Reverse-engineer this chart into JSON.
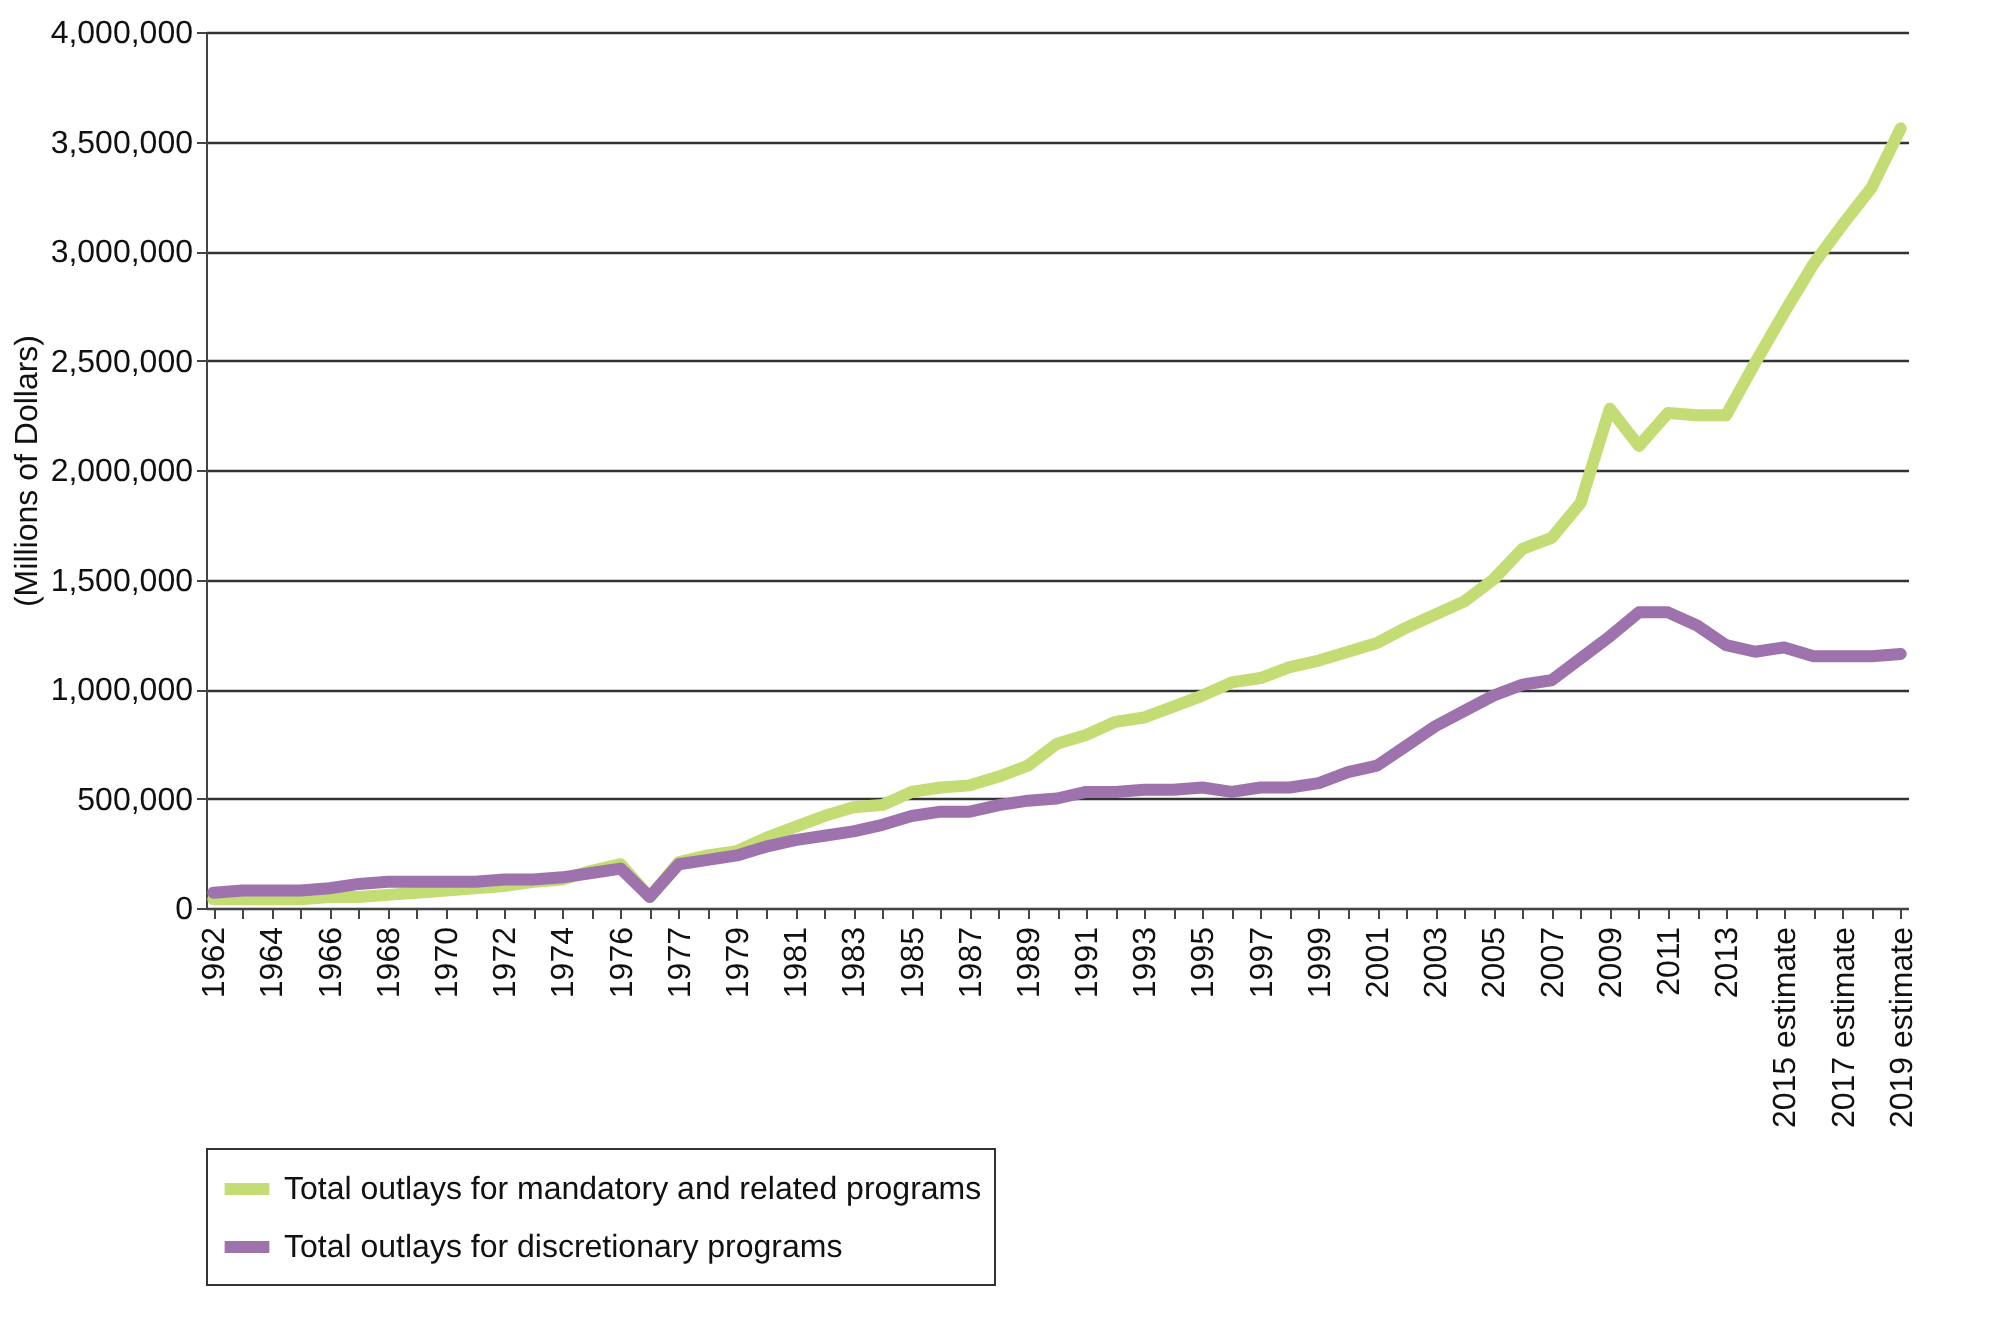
{
  "chart_data": {
    "type": "line",
    "ylabel": "(Millions of Dollars)",
    "categories": [
      "1962",
      null,
      "1964",
      null,
      "1966",
      null,
      "1968",
      null,
      "1970",
      null,
      "1972",
      null,
      "1974",
      null,
      "1976",
      null,
      "1977",
      null,
      "1979",
      null,
      "1981",
      null,
      "1983",
      null,
      "1985",
      null,
      "1987",
      null,
      "1989",
      null,
      "1991",
      null,
      "1993",
      null,
      "1995",
      null,
      "1997",
      null,
      "1999",
      null,
      "2001",
      null,
      "2003",
      null,
      "2005",
      null,
      "2007",
      null,
      "2009",
      null,
      "2011",
      null,
      "2013",
      null,
      "2015 estimate",
      null,
      "2017 estimate",
      null,
      "2019 estimate"
    ],
    "series": [
      {
        "name": "Total outlays for mandatory and related programs",
        "color": "#c3dc73",
        "values": [
          40000,
          40000,
          40000,
          40000,
          50000,
          50000,
          60000,
          70000,
          80000,
          90000,
          100000,
          120000,
          130000,
          170000,
          200000,
          50000,
          210000,
          240000,
          260000,
          320000,
          370000,
          420000,
          460000,
          470000,
          530000,
          550000,
          560000,
          600000,
          650000,
          750000,
          790000,
          850000,
          870000,
          920000,
          970000,
          1030000,
          1050000,
          1100000,
          1130000,
          1170000,
          1210000,
          1280000,
          1340000,
          1400000,
          1500000,
          1640000,
          1690000,
          1850000,
          2280000,
          2110000,
          2260000,
          2250000,
          2250000,
          2490000,
          2720000,
          2940000,
          3120000,
          3290000,
          3560000
        ]
      },
      {
        "name": "Total outlays for discretionary programs",
        "color": "#9e72ad",
        "values": [
          70000,
          80000,
          80000,
          80000,
          90000,
          110000,
          120000,
          120000,
          120000,
          120000,
          130000,
          130000,
          140000,
          160000,
          180000,
          50000,
          200000,
          220000,
          240000,
          280000,
          310000,
          330000,
          350000,
          380000,
          420000,
          440000,
          440000,
          470000,
          490000,
          500000,
          530000,
          530000,
          540000,
          540000,
          550000,
          530000,
          550000,
          550000,
          570000,
          620000,
          650000,
          740000,
          830000,
          900000,
          970000,
          1020000,
          1040000,
          1140000,
          1240000,
          1350000,
          1350000,
          1290000,
          1200000,
          1170000,
          1190000,
          1150000,
          1150000,
          1150000,
          1160000
        ]
      }
    ],
    "ylim": [
      0,
      4000000
    ],
    "yticks": [
      0,
      {
        "value": 500000,
        "label": "500,000"
      },
      {
        "value": 1000000,
        "label": "1,000,000"
      },
      {
        "value": 1500000,
        "label": "1,500,000"
      },
      {
        "value": 2000000,
        "label": "2,000,000"
      },
      {
        "value": 2500000,
        "label": "2,500,000"
      },
      {
        "value": 3000000,
        "label": "3,000,000"
      },
      {
        "value": 3500000,
        "label": "3,500,000"
      },
      {
        "value": 4000000,
        "label": "4,000,000"
      }
    ],
    "grid": "y",
    "legend": "bottom",
    "line_style": "solid",
    "marker": "none"
  }
}
